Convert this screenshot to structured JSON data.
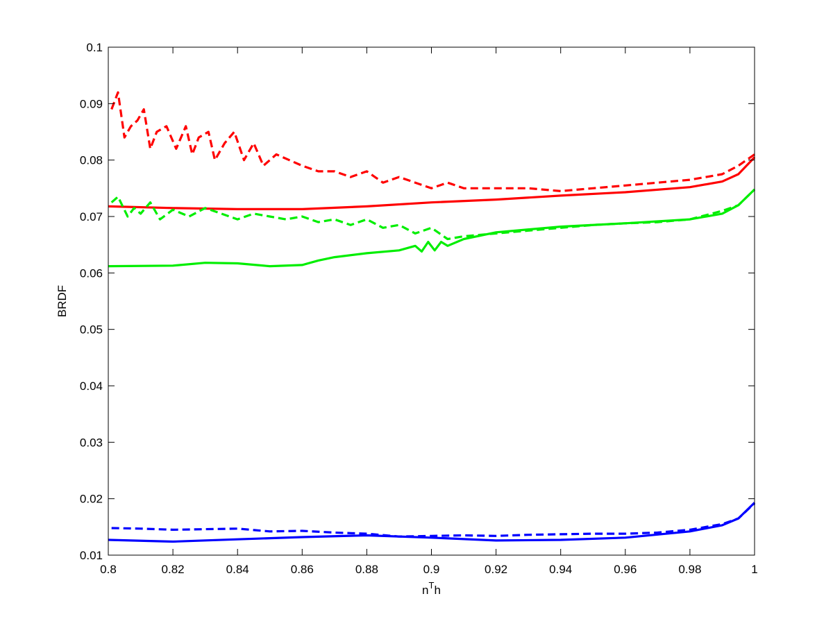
{
  "chart_data": {
    "type": "line",
    "title": "",
    "xlabel": {
      "base": "n",
      "sup": "T",
      "tail": "h"
    },
    "ylabel": "BRDF",
    "xlim": [
      0.8,
      1.0
    ],
    "ylim": [
      0.01,
      0.1
    ],
    "grid": false,
    "x_ticks": [
      0.8,
      0.82,
      0.84,
      0.86,
      0.88,
      0.9,
      0.92,
      0.94,
      0.96,
      0.98,
      1.0
    ],
    "x_tick_labels": [
      "0.8",
      "0.82",
      "0.84",
      "0.86",
      "0.88",
      "0.9",
      "0.92",
      "0.94",
      "0.96",
      "0.98",
      "1"
    ],
    "y_ticks": [
      0.01,
      0.02,
      0.03,
      0.04,
      0.05,
      0.06,
      0.07,
      0.08,
      0.09,
      0.1
    ],
    "y_tick_labels": [
      "0.01",
      "0.02",
      "0.03",
      "0.04",
      "0.05",
      "0.06",
      "0.07",
      "0.08",
      "0.09",
      "0.1"
    ],
    "series": [
      {
        "color": "#ff0000",
        "style": "dashed",
        "x": [
          0.801,
          0.803,
          0.805,
          0.807,
          0.809,
          0.811,
          0.813,
          0.815,
          0.818,
          0.821,
          0.824,
          0.826,
          0.828,
          0.831,
          0.833,
          0.836,
          0.839,
          0.842,
          0.845,
          0.848,
          0.852,
          0.856,
          0.86,
          0.865,
          0.87,
          0.875,
          0.88,
          0.885,
          0.89,
          0.895,
          0.9,
          0.905,
          0.91,
          0.915,
          0.92,
          0.93,
          0.94,
          0.95,
          0.96,
          0.97,
          0.98,
          0.99,
          0.995,
          1.0
        ],
        "y": [
          0.089,
          0.092,
          0.084,
          0.086,
          0.087,
          0.089,
          0.082,
          0.085,
          0.086,
          0.082,
          0.086,
          0.081,
          0.084,
          0.085,
          0.08,
          0.083,
          0.085,
          0.08,
          0.083,
          0.079,
          0.081,
          0.08,
          0.079,
          0.078,
          0.078,
          0.077,
          0.078,
          0.076,
          0.077,
          0.076,
          0.075,
          0.076,
          0.075,
          0.075,
          0.075,
          0.075,
          0.0745,
          0.075,
          0.0755,
          0.076,
          0.0765,
          0.0775,
          0.079,
          0.081
        ]
      },
      {
        "color": "#ff0000",
        "style": "solid",
        "x": [
          0.8,
          0.82,
          0.84,
          0.86,
          0.88,
          0.9,
          0.92,
          0.94,
          0.96,
          0.98,
          0.99,
          0.995,
          1.0
        ],
        "y": [
          0.0718,
          0.0715,
          0.0713,
          0.0713,
          0.0718,
          0.0725,
          0.073,
          0.0737,
          0.0743,
          0.0752,
          0.0762,
          0.0775,
          0.0805
        ]
      },
      {
        "color": "#00ee00",
        "style": "dashed",
        "x": [
          0.801,
          0.803,
          0.806,
          0.808,
          0.81,
          0.813,
          0.816,
          0.82,
          0.825,
          0.83,
          0.835,
          0.84,
          0.845,
          0.85,
          0.855,
          0.86,
          0.865,
          0.87,
          0.875,
          0.88,
          0.885,
          0.89,
          0.895,
          0.9,
          0.905,
          0.91,
          0.92,
          0.93,
          0.94,
          0.95,
          0.96,
          0.97,
          0.98,
          0.99,
          0.995,
          1.0
        ],
        "y": [
          0.0725,
          0.0735,
          0.07,
          0.0715,
          0.0705,
          0.0725,
          0.0695,
          0.0712,
          0.07,
          0.0715,
          0.0705,
          0.0695,
          0.0705,
          0.07,
          0.0695,
          0.07,
          0.069,
          0.0695,
          0.0685,
          0.0695,
          0.068,
          0.0685,
          0.067,
          0.068,
          0.066,
          0.0665,
          0.067,
          0.0675,
          0.068,
          0.0685,
          0.0688,
          0.069,
          0.0695,
          0.071,
          0.072,
          0.0748
        ]
      },
      {
        "color": "#00ee00",
        "style": "solid",
        "x": [
          0.8,
          0.82,
          0.83,
          0.84,
          0.85,
          0.86,
          0.865,
          0.87,
          0.88,
          0.89,
          0.895,
          0.897,
          0.899,
          0.901,
          0.903,
          0.905,
          0.91,
          0.92,
          0.94,
          0.96,
          0.98,
          0.99,
          0.995,
          1.0
        ],
        "y": [
          0.0612,
          0.0613,
          0.0618,
          0.0617,
          0.0612,
          0.0614,
          0.0622,
          0.0628,
          0.0635,
          0.064,
          0.0648,
          0.0638,
          0.0655,
          0.064,
          0.0655,
          0.0648,
          0.066,
          0.0672,
          0.0682,
          0.0688,
          0.0695,
          0.0705,
          0.072,
          0.0748
        ]
      },
      {
        "color": "#0000ff",
        "style": "dashed",
        "x": [
          0.801,
          0.81,
          0.82,
          0.83,
          0.84,
          0.85,
          0.86,
          0.87,
          0.88,
          0.89,
          0.9,
          0.91,
          0.92,
          0.93,
          0.94,
          0.95,
          0.96,
          0.97,
          0.98,
          0.99,
          0.995,
          1.0
        ],
        "y": [
          0.0148,
          0.0147,
          0.0145,
          0.0146,
          0.0147,
          0.0142,
          0.0143,
          0.014,
          0.0138,
          0.0133,
          0.0134,
          0.0135,
          0.0134,
          0.0136,
          0.0137,
          0.0138,
          0.0138,
          0.014,
          0.0145,
          0.0155,
          0.0165,
          0.0192
        ]
      },
      {
        "color": "#0000ff",
        "style": "solid",
        "x": [
          0.8,
          0.82,
          0.84,
          0.86,
          0.88,
          0.9,
          0.92,
          0.94,
          0.96,
          0.98,
          0.99,
          0.995,
          1.0
        ],
        "y": [
          0.0127,
          0.0124,
          0.0128,
          0.0132,
          0.0135,
          0.0131,
          0.0126,
          0.0127,
          0.0131,
          0.0142,
          0.0153,
          0.0165,
          0.0193
        ]
      }
    ]
  }
}
